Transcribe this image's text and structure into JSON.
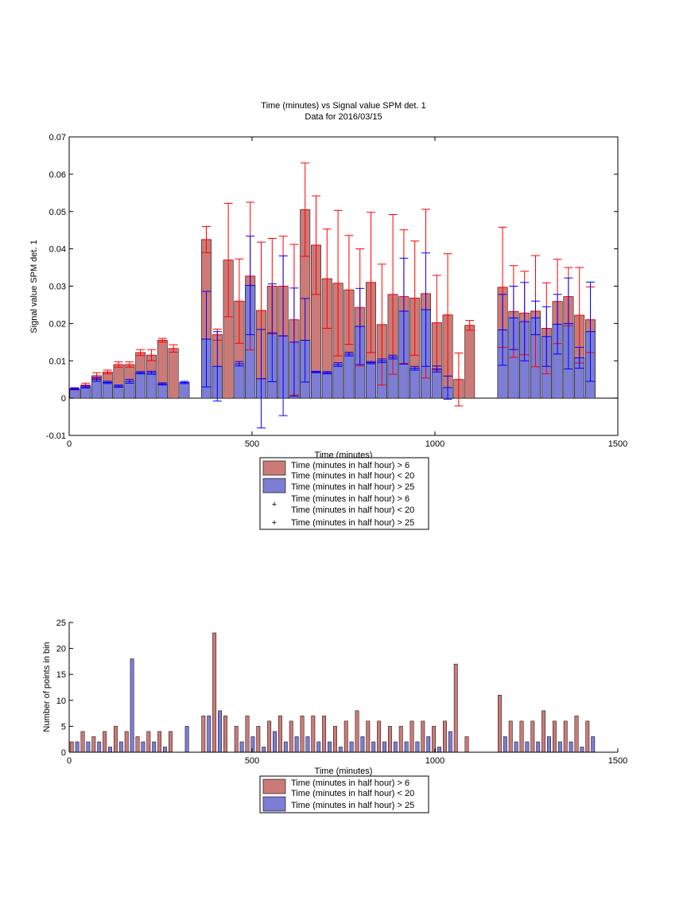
{
  "colors": {
    "red_bar": "#cc7a78",
    "blue_bar": "#7d7dd6",
    "red_err": "#ff0000",
    "blue_err": "#0000ff"
  },
  "top_chart": {
    "title_line1": "Time (minutes) vs Signal value SPM det. 1",
    "title_line2": "Data for 2016/03/15",
    "xlabel": "Time (minutes)",
    "ylabel": "Signal value SPM det. 1",
    "legend": [
      "Time (minutes in half hour) > 6",
      "Time (minutes in half hour) < 20",
      "Time (minutes in half hour) > 25",
      "Time (minutes in half hour) > 6",
      "Time (minutes in half hour) < 20",
      "Time (minutes in half hour) > 25"
    ]
  },
  "bottom_chart": {
    "xlabel": "Time (minutes)",
    "ylabel": "Number of points in bin",
    "legend": [
      "Time (minutes in half hour) > 6",
      "Time (minutes in half hour) < 20",
      "Time (minutes in half hour) > 25"
    ]
  },
  "chart_data": [
    {
      "type": "bar",
      "title": "Time (minutes) vs Signal value SPM det. 1 / Data for 2016/03/15",
      "xlabel": "Time (minutes)",
      "ylabel": "Signal value SPM det. 1",
      "xlim": [
        0,
        1500
      ],
      "ylim": [
        -0.01,
        0.07
      ],
      "xticks": [
        "0",
        "500",
        "1000",
        "1500"
      ],
      "yticks": [
        "-0.01",
        "0",
        "0.01",
        "0.02",
        "0.03",
        "0.04",
        "0.05",
        "0.06",
        "0.07"
      ],
      "legend_placement": "below",
      "series": [
        {
          "x": [
            15,
            45,
            75,
            105,
            135,
            165,
            195,
            225,
            255,
            285,
            375,
            405,
            435,
            465,
            495,
            525,
            555,
            585,
            615,
            645,
            675,
            705,
            735,
            765,
            795,
            825,
            855,
            885,
            915,
            945,
            975,
            1005,
            1035,
            1065,
            1095,
            1185,
            1215,
            1245,
            1275,
            1305,
            1335,
            1365,
            1395,
            1425
          ],
          "values": [
            0.0025,
            0.0035,
            0.006,
            0.007,
            0.009,
            0.009,
            0.0122,
            0.0115,
            0.0155,
            0.0133,
            0.0425,
            0.017,
            0.037,
            0.026,
            0.0327,
            0.0235,
            0.03,
            0.03,
            0.021,
            0.0505,
            0.041,
            0.032,
            0.0308,
            0.029,
            0.0243,
            0.031,
            0.0197,
            0.0278,
            0.0272,
            0.0268,
            0.028,
            0.0202,
            0.0223,
            0.005,
            0.0195,
            0.0297,
            0.0232,
            0.0228,
            0.0233,
            0.0187,
            0.0259,
            0.0272,
            0.0222,
            0.021
          ],
          "err": [
            0.0003,
            0.0005,
            0.0008,
            0.0005,
            0.0007,
            0.0007,
            0.0008,
            0.0015,
            0.0005,
            0.001,
            0.0035,
            0.0015,
            0.0152,
            0.0113,
            0.0198,
            0.0183,
            0.0128,
            0.0134,
            0.0202,
            0.0125,
            0.0132,
            0.0133,
            0.0195,
            0.0146,
            0.0157,
            0.0188,
            0.0162,
            0.0214,
            0.0179,
            0.0153,
            0.0226,
            0.0127,
            0.0164,
            0.0071,
            0.0013,
            0.0161,
            0.0123,
            0.0112,
            0.0149,
            0.0122,
            0.0113,
            0.0078,
            0.0128,
            0.0088
          ]
        },
        {
          "x": [
            15,
            45,
            75,
            105,
            135,
            165,
            195,
            225,
            255,
            315,
            375,
            405,
            465,
            495,
            525,
            555,
            585,
            615,
            645,
            675,
            705,
            735,
            765,
            795,
            825,
            855,
            885,
            915,
            945,
            975,
            1005,
            1035,
            1185,
            1215,
            1245,
            1275,
            1305,
            1335,
            1365,
            1395,
            1425
          ],
          "values": [
            0.0025,
            0.003,
            0.005,
            0.0042,
            0.0032,
            0.0045,
            0.0068,
            0.0068,
            0.0038,
            0.0042,
            0.0158,
            0.0085,
            0.0092,
            0.0302,
            0.0052,
            0.0175,
            0.0167,
            0.015,
            0.0155,
            0.007,
            0.0068,
            0.009,
            0.0118,
            0.0192,
            0.0095,
            0.01,
            0.011,
            0.0233,
            0.008,
            0.0237,
            0.0078,
            0.0028,
            0.0183,
            0.0215,
            0.0205,
            0.0215,
            0.0165,
            0.0198,
            0.02,
            0.0108,
            0.0178
          ],
          "err": [
            0.0002,
            0.0003,
            0.0005,
            0.0003,
            0.0003,
            0.0005,
            0.0003,
            0.0004,
            0.0003,
            0.0003,
            0.0128,
            0.0093,
            0.0006,
            0.0132,
            0.0132,
            0.0131,
            0.0214,
            0.0145,
            0.0112,
            0.0002,
            0.0003,
            0.0005,
            0.0005,
            0.0102,
            0.0003,
            0.0005,
            0.0005,
            0.0142,
            0.0005,
            0.0152,
            0.0008,
            0.0031,
            0.0095,
            0.0085,
            0.0105,
            0.0045,
            0.008,
            0.008,
            0.0122,
            0.0028,
            0.0133
          ]
        }
      ]
    },
    {
      "type": "bar",
      "xlabel": "Time (minutes)",
      "ylabel": "Number of points in bin",
      "xlim": [
        0,
        1500
      ],
      "ylim": [
        0,
        25
      ],
      "xticks": [
        "0",
        "500",
        "1000",
        "1500"
      ],
      "yticks": [
        "0",
        "5",
        "10",
        "15",
        "20",
        "25"
      ],
      "legend_placement": "below",
      "series": [
        {
          "x": [
            7,
            37,
            67,
            97,
            127,
            157,
            187,
            217,
            247,
            277,
            367,
            397,
            427,
            457,
            487,
            517,
            547,
            577,
            607,
            637,
            667,
            697,
            727,
            757,
            787,
            817,
            847,
            877,
            907,
            937,
            967,
            997,
            1027,
            1057,
            1087,
            1177,
            1207,
            1237,
            1267,
            1297,
            1327,
            1357,
            1387,
            1417
          ],
          "values": [
            2,
            4,
            3,
            4,
            5,
            4,
            3,
            4,
            4,
            4,
            7,
            23,
            7,
            5,
            7,
            5,
            6,
            7,
            6,
            7,
            7,
            7,
            5,
            6,
            8,
            6,
            6,
            5,
            5,
            6,
            6,
            5,
            6,
            17,
            3,
            11,
            6,
            6,
            6,
            8,
            6,
            6,
            7,
            6
          ]
        },
        {
          "x": [
            22,
            52,
            82,
            112,
            142,
            172,
            202,
            232,
            262,
            322,
            382,
            412,
            472,
            502,
            532,
            562,
            592,
            622,
            652,
            682,
            712,
            742,
            772,
            802,
            832,
            862,
            892,
            922,
            952,
            982,
            1012,
            1042,
            1192,
            1222,
            1252,
            1282,
            1312,
            1342,
            1372,
            1402,
            1432
          ],
          "values": [
            2,
            2,
            2,
            1,
            2,
            18,
            2,
            2,
            1,
            5,
            7,
            8,
            2,
            3,
            1,
            4,
            2,
            3,
            3,
            2,
            2,
            1,
            2,
            3,
            2,
            2,
            2,
            2,
            2,
            3,
            1,
            4,
            3,
            2,
            2,
            2,
            3,
            2,
            2,
            1,
            3
          ]
        }
      ]
    }
  ]
}
